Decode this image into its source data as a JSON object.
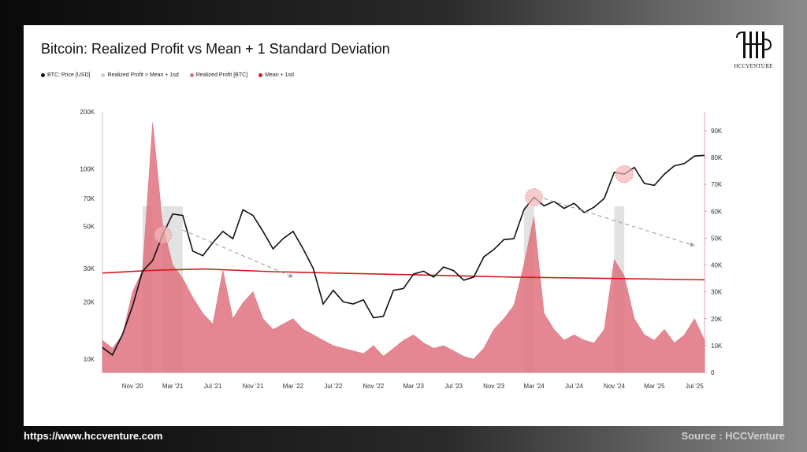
{
  "header": {
    "title": "Bitcoin: Realized Profit vs Mean + 1 Standard Deviation"
  },
  "legend": [
    {
      "label": "BTC: Price [USD]",
      "color": "#111111"
    },
    {
      "label": "Realized Profit > Mean + 1sd",
      "color": "#cccccc"
    },
    {
      "label": "Realized Profit [BTC]",
      "color": "#e0737f"
    },
    {
      "label": "Mean + 1sd",
      "color": "#d7191c"
    }
  ],
  "logo": {
    "text": "HCCVENTURE",
    "icon": "hcc-monogram-icon"
  },
  "footer": {
    "url": "https://www.hccventure.com",
    "source": "Source : HCCVenture"
  },
  "chart_data": {
    "type": "line",
    "x_ticks": [
      "Nov '20",
      "Mar '21",
      "Jul '21",
      "Nov '21",
      "Mar '22",
      "Jul '22",
      "Nov '22",
      "Mar '23",
      "Jul '23",
      "Nov '23",
      "Mar '24",
      "Jul '24",
      "Nov '24",
      "Mar '25",
      "Jul '25"
    ],
    "left_axis": {
      "scale": "log",
      "ticks": [
        "200K",
        "100K",
        "70K",
        "50K",
        "30K",
        "20K",
        "10K"
      ],
      "tick_values": [
        200000,
        100000,
        70000,
        50000,
        30000,
        20000,
        10000
      ],
      "range": [
        8500,
        200000
      ]
    },
    "right_axis": {
      "scale": "linear",
      "ticks": [
        "90K",
        "80K",
        "70K",
        "60K",
        "50K",
        "40K",
        "30K",
        "20K",
        "10K",
        "0"
      ],
      "tick_values": [
        90000,
        80000,
        70000,
        60000,
        50000,
        40000,
        30000,
        20000,
        10000,
        0
      ],
      "range": [
        0,
        97000
      ]
    },
    "price_series": {
      "name": "BTC: Price [USD]",
      "dates": [
        "2020-08",
        "2020-09",
        "2020-10",
        "2020-11",
        "2020-12",
        "2021-01",
        "2021-02",
        "2021-03",
        "2021-04",
        "2021-05",
        "2021-06",
        "2021-07",
        "2021-08",
        "2021-09",
        "2021-10",
        "2021-11",
        "2021-12",
        "2022-01",
        "2022-02",
        "2022-03",
        "2022-04",
        "2022-05",
        "2022-06",
        "2022-07",
        "2022-08",
        "2022-09",
        "2022-10",
        "2022-11",
        "2022-12",
        "2023-01",
        "2023-02",
        "2023-03",
        "2023-04",
        "2023-05",
        "2023-06",
        "2023-07",
        "2023-08",
        "2023-09",
        "2023-10",
        "2023-11",
        "2023-12",
        "2024-01",
        "2024-02",
        "2024-03",
        "2024-04",
        "2024-05",
        "2024-06",
        "2024-07",
        "2024-08",
        "2024-09",
        "2024-10",
        "2024-11",
        "2024-12",
        "2025-01",
        "2025-02",
        "2025-03",
        "2025-04",
        "2025-05",
        "2025-06",
        "2025-07",
        "2025-08"
      ],
      "values": [
        11500,
        10500,
        13500,
        19000,
        29000,
        33000,
        45000,
        58000,
        57000,
        37000,
        35000,
        41000,
        47000,
        43000,
        61000,
        57000,
        47000,
        38000,
        43000,
        47000,
        38000,
        30000,
        19500,
        23000,
        20000,
        19500,
        20500,
        16500,
        16800,
        23000,
        23500,
        28000,
        29000,
        27000,
        30500,
        29200,
        26000,
        27000,
        34500,
        37700,
        42500,
        43000,
        61000,
        71000,
        64000,
        67500,
        62000,
        66000,
        59000,
        63000,
        70000,
        96000,
        94000,
        102000,
        84000,
        82000,
        94000,
        104000,
        107000,
        117000,
        118000
      ]
    },
    "mean_1sd_series": {
      "name": "Mean + 1sd",
      "dates": [
        "2020-08",
        "2021-01",
        "2021-06",
        "2022-01",
        "2023-01",
        "2024-01",
        "2025-08"
      ],
      "values": [
        37000,
        38000,
        38500,
        37500,
        36500,
        35500,
        34500
      ]
    },
    "realized_profit_series": {
      "name": "Realized Profit [BTC]",
      "dates": [
        "2020-08",
        "2020-09",
        "2020-10",
        "2020-11",
        "2020-12",
        "2021-01",
        "2021-02",
        "2021-03",
        "2021-04",
        "2021-05",
        "2021-06",
        "2021-07",
        "2021-08",
        "2021-09",
        "2021-10",
        "2021-11",
        "2021-12",
        "2022-01",
        "2022-02",
        "2022-03",
        "2022-04",
        "2022-05",
        "2022-06",
        "2022-07",
        "2022-08",
        "2022-09",
        "2022-10",
        "2022-11",
        "2022-12",
        "2023-01",
        "2023-02",
        "2023-03",
        "2023-04",
        "2023-05",
        "2023-06",
        "2023-07",
        "2023-08",
        "2023-09",
        "2023-10",
        "2023-11",
        "2023-12",
        "2024-01",
        "2024-02",
        "2024-03",
        "2024-04",
        "2024-05",
        "2024-06",
        "2024-07",
        "2024-08",
        "2024-09",
        "2024-10",
        "2024-11",
        "2024-12",
        "2025-01",
        "2025-02",
        "2025-03",
        "2025-04",
        "2025-05",
        "2025-06",
        "2025-07",
        "2025-08"
      ],
      "values": [
        12000,
        9000,
        14000,
        30000,
        38000,
        93000,
        55000,
        40000,
        35000,
        28000,
        22000,
        18000,
        38000,
        20000,
        26000,
        30000,
        20000,
        16000,
        18000,
        20000,
        16000,
        14000,
        12000,
        10000,
        9000,
        8000,
        7000,
        10000,
        6000,
        9000,
        12000,
        14000,
        11000,
        9000,
        10000,
        8000,
        6000,
        5000,
        9000,
        16000,
        20000,
        25000,
        40000,
        58000,
        22000,
        16000,
        12000,
        14000,
        12000,
        11000,
        16000,
        42000,
        36000,
        20000,
        14000,
        12000,
        16000,
        11000,
        14000,
        20000,
        12000
      ]
    },
    "highlight_ranges": {
      "name": "Realized Profit > Mean + 1sd",
      "ranges": [
        [
          "2020-12",
          "2021-01"
        ],
        [
          "2021-02",
          "2021-04"
        ],
        [
          "2024-02",
          "2024-03"
        ],
        [
          "2024-11",
          "2024-12"
        ]
      ]
    },
    "peak_markers": [
      "2021-02",
      "2024-03",
      "2024-12"
    ],
    "trend_arrows": [
      [
        "2021-04",
        "2022-03"
      ],
      [
        "2024-04",
        "2025-07"
      ]
    ]
  }
}
